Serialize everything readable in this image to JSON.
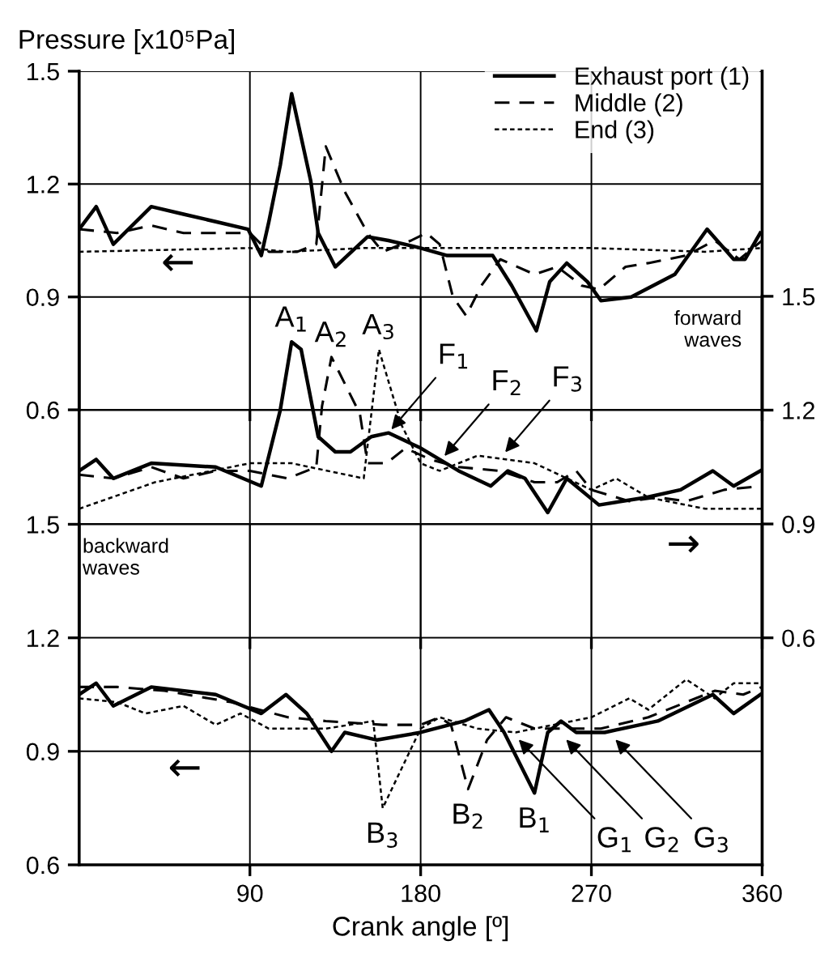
{
  "chart_data": [
    {
      "type": "line",
      "ylabel": "Pressure [x10⁵Pa]",
      "xlim": [
        0,
        360
      ],
      "xticks": [
        90,
        180,
        270,
        360
      ],
      "ylim": [
        0.6,
        1.5
      ],
      "yticks": [
        1.5,
        1.2,
        0.9,
        0.6
      ],
      "grid": true,
      "legend": "top right",
      "tick_labels": "y",
      "annotations": [
        "←"
      ],
      "series": [
        {
          "name": "Exhaust port (1)",
          "color": "#000000",
          "line_style": "solid",
          "x": [
            0,
            9,
            18,
            38,
            55,
            72,
            89,
            96,
            100,
            106,
            112,
            122,
            126,
            135,
            152,
            163,
            180,
            194,
            206,
            218,
            228,
            241,
            248,
            257,
            268,
            275,
            291,
            314,
            331,
            345,
            351,
            359
          ],
          "values": [
            1.08,
            1.14,
            1.04,
            1.14,
            1.12,
            1.1,
            1.08,
            1.01,
            1.1,
            1.25,
            1.44,
            1.21,
            1.07,
            0.98,
            1.06,
            1.05,
            1.03,
            1.01,
            1.01,
            1.01,
            0.93,
            0.81,
            0.94,
            0.99,
            0.94,
            0.89,
            0.9,
            0.96,
            1.08,
            1.0,
            1.0,
            1.07
          ]
        },
        {
          "name": "Middle (2)",
          "color": "#000000",
          "line_style": "dashed",
          "x": [
            0,
            20,
            38,
            55,
            75,
            90,
            100,
            115,
            125,
            130,
            140,
            152,
            160,
            175,
            183,
            190,
            197,
            204,
            212,
            222,
            240,
            252,
            265,
            274,
            288,
            300,
            320,
            335,
            348,
            360
          ],
          "values": [
            1.08,
            1.07,
            1.09,
            1.07,
            1.07,
            1.07,
            1.02,
            1.02,
            1.04,
            1.3,
            1.18,
            1.07,
            1.02,
            1.05,
            1.07,
            1.04,
            0.9,
            0.85,
            0.93,
            1.0,
            0.96,
            0.98,
            0.93,
            0.92,
            0.98,
            0.99,
            1.01,
            1.05,
            1.0,
            1.05
          ]
        },
        {
          "name": "End (3)",
          "color": "#000000",
          "line_style": "dotted",
          "x": [
            0,
            90,
            110,
            150,
            180,
            270,
            330,
            360
          ],
          "values": [
            1.02,
            1.03,
            1.02,
            1.03,
            1.03,
            1.03,
            1.02,
            1.03
          ]
        }
      ]
    },
    {
      "type": "line",
      "xlim": [
        0,
        360
      ],
      "xticks": [
        90,
        180,
        270,
        360
      ],
      "ylim": [
        0.6,
        1.5
      ],
      "yticks": [
        1.5,
        1.2,
        0.9,
        0.6
      ],
      "grid": true,
      "tick_labels": "y",
      "annotations": [
        "forward\nwaves",
        "→",
        {
          "text": "A$_{1}$",
          "x": 112,
          "y": 1.38
        },
        {
          "text": "A$_{2}$",
          "x": 133,
          "y": 1.34
        },
        {
          "text": "A$_{3}$",
          "x": 158,
          "y": 1.36
        },
        {
          "text": "F$_{1}$",
          "x": 163,
          "y": 1.14
        },
        {
          "text": "F$_{2}$",
          "x": 191,
          "y": 1.07
        },
        {
          "text": "F$_{3}$",
          "x": 223,
          "y": 1.08
        }
      ],
      "series": [
        {
          "color": "#000000",
          "line_style": "solid",
          "x": [
            0,
            9,
            18,
            38,
            72,
            96,
            106,
            112,
            117,
            126,
            135,
            143,
            154,
            163,
            180,
            200,
            217,
            226,
            235,
            247,
            257,
            274,
            299,
            317,
            334,
            345,
            359
          ],
          "values": [
            1.04,
            1.07,
            1.02,
            1.06,
            1.05,
            1.0,
            1.2,
            1.38,
            1.36,
            1.13,
            1.09,
            1.09,
            1.13,
            1.14,
            1.1,
            1.04,
            1.0,
            1.04,
            1.02,
            0.93,
            1.02,
            0.95,
            0.97,
            0.99,
            1.04,
            1.0,
            1.04
          ]
        },
        {
          "color": "#000000",
          "line_style": "dashed",
          "x": [
            0,
            18,
            38,
            55,
            72,
            90,
            110,
            125,
            128,
            133,
            148,
            152,
            162,
            172,
            185,
            200,
            222,
            240,
            252,
            262,
            270,
            290,
            305,
            320,
            340,
            360
          ],
          "values": [
            1.03,
            1.02,
            1.05,
            1.02,
            1.04,
            1.04,
            1.02,
            1.05,
            1.21,
            1.34,
            1.19,
            1.06,
            1.06,
            1.1,
            1.07,
            1.05,
            1.04,
            1.01,
            1.01,
            1.04,
            0.99,
            0.96,
            0.97,
            0.96,
            0.99,
            1.0
          ]
        },
        {
          "color": "#000000",
          "line_style": "dotted",
          "x": [
            0,
            40,
            90,
            112,
            150,
            158,
            170,
            180,
            190,
            210,
            240,
            270,
            283,
            300,
            330,
            360
          ],
          "values": [
            0.94,
            1.01,
            1.06,
            1.06,
            1.02,
            1.36,
            1.16,
            1.06,
            1.04,
            1.08,
            1.06,
            0.99,
            1.02,
            0.97,
            0.94,
            0.94
          ]
        }
      ]
    },
    {
      "type": "line",
      "xlabel": "Crank angle [º]",
      "xlim": [
        0,
        360
      ],
      "xticks": [
        90,
        180,
        270,
        360
      ],
      "ylim": [
        0.6,
        1.5
      ],
      "yticks": [
        1.5,
        1.2,
        0.9,
        0.6
      ],
      "grid": true,
      "annotations": [
        "backward\nwaves",
        "←",
        {
          "text": "B$_{3}$",
          "x": 160,
          "y": 0.75
        },
        {
          "text": "B$_{2}$",
          "x": 205,
          "y": 0.8
        },
        {
          "text": "B$_{1}$",
          "x": 240,
          "y": 0.79
        },
        {
          "text": "G$_{1}$",
          "x": 230,
          "y": 0.94
        },
        {
          "text": "G$_{2}$",
          "x": 255,
          "y": 0.94
        },
        {
          "text": "G$_{3}$",
          "x": 281,
          "y": 0.94
        }
      ],
      "series": [
        {
          "color": "#000000",
          "line_style": "solid",
          "x": [
            0,
            9,
            18,
            38,
            72,
            96,
            109,
            120,
            133,
            140,
            157,
            180,
            203,
            216,
            224,
            240,
            247,
            254,
            262,
            277,
            305,
            334,
            345,
            359
          ],
          "values": [
            1.05,
            1.08,
            1.02,
            1.07,
            1.05,
            1.0,
            1.05,
            1.0,
            0.9,
            0.95,
            0.93,
            0.95,
            0.98,
            1.01,
            0.95,
            0.79,
            0.95,
            0.98,
            0.95,
            0.95,
            0.98,
            1.05,
            1.0,
            1.05
          ]
        },
        {
          "color": "#000000",
          "line_style": "dashed",
          "x": [
            0,
            20,
            45,
            80,
            95,
            110,
            130,
            160,
            180,
            190,
            196,
            205,
            215,
            225,
            240,
            260,
            275,
            300,
            320,
            335,
            350,
            360
          ],
          "values": [
            1.07,
            1.07,
            1.06,
            1.03,
            1.01,
            0.99,
            0.98,
            0.97,
            0.97,
            0.99,
            0.97,
            0.8,
            0.93,
            0.99,
            0.96,
            0.96,
            0.96,
            0.99,
            1.03,
            1.06,
            1.05,
            1.07
          ]
        },
        {
          "color": "#000000",
          "line_style": "dotted",
          "x": [
            0,
            20,
            35,
            55,
            72,
            85,
            100,
            130,
            155,
            160,
            180,
            190,
            210,
            230,
            250,
            270,
            290,
            300,
            320,
            335,
            345,
            360
          ],
          "values": [
            1.04,
            1.03,
            1.0,
            1.02,
            0.97,
            1.0,
            0.96,
            0.96,
            0.98,
            0.75,
            0.96,
            0.99,
            0.96,
            0.95,
            0.97,
            0.99,
            1.04,
            1.01,
            1.09,
            1.04,
            1.08,
            1.08
          ]
        }
      ]
    }
  ]
}
